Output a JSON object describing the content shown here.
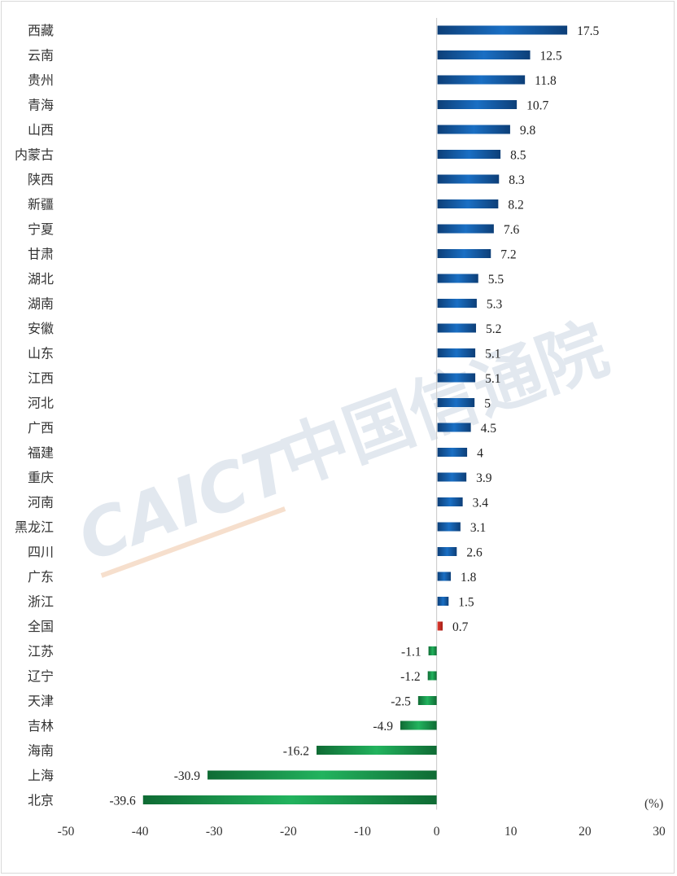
{
  "chart_data": {
    "type": "bar",
    "orientation": "horizontal",
    "categories": [
      "西藏",
      "云南",
      "贵州",
      "青海",
      "山西",
      "内蒙古",
      "陕西",
      "新疆",
      "宁夏",
      "甘肃",
      "湖北",
      "湖南",
      "安徽",
      "山东",
      "江西",
      "河北",
      "广西",
      "福建",
      "重庆",
      "河南",
      "黑龙江",
      "四川",
      "广东",
      "浙江",
      "全国",
      "江苏",
      "辽宁",
      "天津",
      "吉林",
      "海南",
      "上海",
      "北京"
    ],
    "values": [
      17.5,
      12.5,
      11.8,
      10.7,
      9.8,
      8.5,
      8.3,
      8.2,
      7.6,
      7.2,
      5.5,
      5.3,
      5.2,
      5.1,
      5.1,
      5,
      4.5,
      4,
      3.9,
      3.4,
      3.1,
      2.6,
      1.8,
      1.5,
      0.7,
      -1.1,
      -1.2,
      -2.5,
      -4.9,
      -16.2,
      -30.9,
      -39.6
    ],
    "value_labels": [
      "17.5",
      "12.5",
      "11.8",
      "10.7",
      "9.8",
      "8.5",
      "8.3",
      "8.2",
      "7.6",
      "7.2",
      "5.5",
      "5.3",
      "5.2",
      "5.1",
      "5.1",
      "5",
      "4.5",
      "4",
      "3.9",
      "3.4",
      "3.1",
      "2.6",
      "1.8",
      "1.5",
      "0.7",
      "-1.1",
      "-1.2",
      "-2.5",
      "-4.9",
      "-16.2",
      "-30.9",
      "-39.6"
    ],
    "highlight_category": "全国",
    "xlim": [
      -50,
      30
    ],
    "xticks": [
      "-50",
      "-40",
      "-30",
      "-20",
      "-10",
      "0",
      "10",
      "20",
      "30"
    ],
    "unit_label": "(%)",
    "grid": false,
    "colors": {
      "positive": "#1a6fc4",
      "positive_dark": "#0d3f78",
      "negative": "#22b35e",
      "negative_dark": "#0f6b34",
      "highlight": "#e03c31",
      "highlight_dark": "#a61e16"
    }
  },
  "watermark": {
    "brand": "CAICT",
    "text": "中国信通院"
  }
}
